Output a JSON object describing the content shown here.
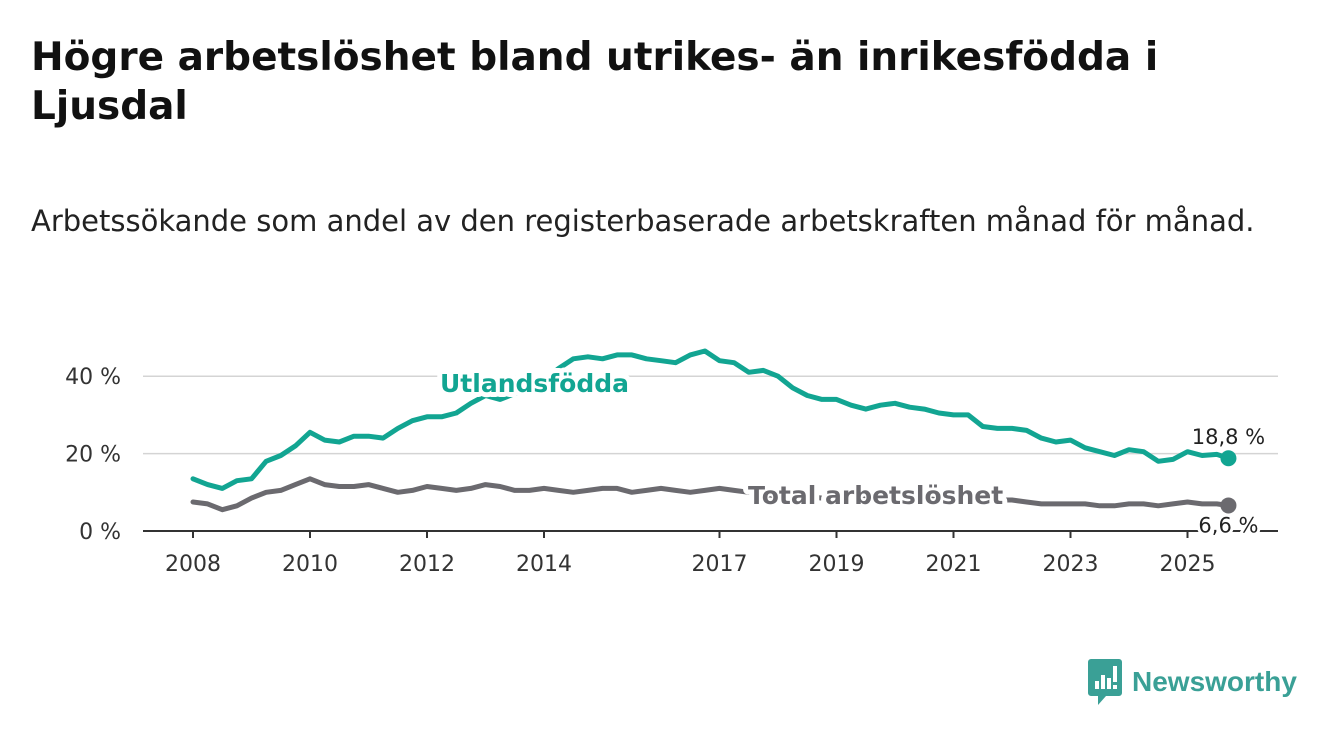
{
  "title": "Högre arbetslöshet bland utrikes- än inrikesfödda i Ljusdal",
  "subtitle": "Arbetssökande som andel av den registerbaserade arbetskraften månad för månad.",
  "brand": {
    "name": "Newsworthy",
    "color": "#3aa096",
    "icon": "bar-chart-logo-icon"
  },
  "chart_data": {
    "type": "line",
    "title": "Högre arbetslöshet bland utrikes- än inrikesfödda i Ljusdal",
    "xlabel": "",
    "ylabel": "",
    "xlim": [
      2007.6,
      2026.5
    ],
    "ylim": [
      0,
      50
    ],
    "grid": true,
    "y_ticks": [
      {
        "value": 0,
        "label": "0 %"
      },
      {
        "value": 20,
        "label": "20 %"
      },
      {
        "value": 40,
        "label": "40 %"
      }
    ],
    "x_ticks": [
      {
        "value": 2008,
        "label": "2008"
      },
      {
        "value": 2010,
        "label": "2010"
      },
      {
        "value": 2012,
        "label": "2012"
      },
      {
        "value": 2014,
        "label": "2014"
      },
      {
        "value": 2017,
        "label": "2017"
      },
      {
        "value": 2019,
        "label": "2019"
      },
      {
        "value": 2021,
        "label": "2021"
      },
      {
        "value": 2023,
        "label": "2023"
      },
      {
        "value": 2025,
        "label": "2025"
      }
    ],
    "series": [
      {
        "name": "Utlandsfödda",
        "color": "#12a592",
        "end_label": "18,8 %",
        "x": [
          2008.0,
          2008.25,
          2008.5,
          2008.75,
          2009.0,
          2009.25,
          2009.5,
          2009.75,
          2010.0,
          2010.25,
          2010.5,
          2010.75,
          2011.0,
          2011.25,
          2011.5,
          2011.75,
          2012.0,
          2012.25,
          2012.5,
          2012.75,
          2013.0,
          2013.25,
          2013.5,
          2013.75,
          2014.0,
          2014.25,
          2014.5,
          2014.75,
          2015.0,
          2015.25,
          2015.5,
          2015.75,
          2016.0,
          2016.25,
          2016.5,
          2016.75,
          2017.0,
          2017.25,
          2017.5,
          2017.75,
          2018.0,
          2018.25,
          2018.5,
          2018.75,
          2019.0,
          2019.25,
          2019.5,
          2019.75,
          2020.0,
          2020.25,
          2020.5,
          2020.75,
          2021.0,
          2021.25,
          2021.5,
          2021.75,
          2022.0,
          2022.25,
          2022.5,
          2022.75,
          2023.0,
          2023.25,
          2023.5,
          2023.75,
          2024.0,
          2024.25,
          2024.5,
          2024.75,
          2025.0,
          2025.25,
          2025.5,
          2025.7
        ],
        "values": [
          13.5,
          12.0,
          11.0,
          13.0,
          13.5,
          18.0,
          19.5,
          22.0,
          25.5,
          23.5,
          23.0,
          24.5,
          24.5,
          24.0,
          26.5,
          28.5,
          29.5,
          29.5,
          30.5,
          33.0,
          35.0,
          34.0,
          35.5,
          36.0,
          39.0,
          42.0,
          44.5,
          45.0,
          44.5,
          45.5,
          45.5,
          44.5,
          44.0,
          43.5,
          45.5,
          46.5,
          44.0,
          43.5,
          41.0,
          41.5,
          40.0,
          37.0,
          35.0,
          34.0,
          34.0,
          32.5,
          31.5,
          32.5,
          33.0,
          32.0,
          31.5,
          30.5,
          30.0,
          30.0,
          27.0,
          26.5,
          26.5,
          26.0,
          24.0,
          23.0,
          23.5,
          21.5,
          20.5,
          19.5,
          21.0,
          20.5,
          18.0,
          18.5,
          20.5,
          19.5,
          19.8,
          18.8
        ]
      },
      {
        "name": "Total arbetslöshet",
        "color": "#6b6a6f",
        "end_label": "6,6 %",
        "x": [
          2008.0,
          2008.25,
          2008.5,
          2008.75,
          2009.0,
          2009.25,
          2009.5,
          2009.75,
          2010.0,
          2010.25,
          2010.5,
          2010.75,
          2011.0,
          2011.25,
          2011.5,
          2011.75,
          2012.0,
          2012.25,
          2012.5,
          2012.75,
          2013.0,
          2013.25,
          2013.5,
          2013.75,
          2014.0,
          2014.25,
          2014.5,
          2014.75,
          2015.0,
          2015.25,
          2015.5,
          2015.75,
          2016.0,
          2016.25,
          2016.5,
          2016.75,
          2017.0,
          2017.25,
          2017.5,
          2017.75,
          2018.0,
          2018.25,
          2018.5,
          2018.75,
          2019.0,
          2019.25,
          2019.5,
          2019.75,
          2020.0,
          2020.25,
          2020.5,
          2020.75,
          2021.0,
          2021.25,
          2021.5,
          2021.75,
          2022.0,
          2022.25,
          2022.5,
          2022.75,
          2023.0,
          2023.25,
          2023.5,
          2023.75,
          2024.0,
          2024.25,
          2024.5,
          2024.75,
          2025.0,
          2025.25,
          2025.5,
          2025.7
        ],
        "values": [
          7.5,
          7.0,
          5.5,
          6.5,
          8.5,
          10.0,
          10.5,
          12.0,
          13.5,
          12.0,
          11.5,
          11.5,
          12.0,
          11.0,
          10.0,
          10.5,
          11.5,
          11.0,
          10.5,
          11.0,
          12.0,
          11.5,
          10.5,
          10.5,
          11.0,
          10.5,
          10.0,
          10.5,
          11.0,
          11.0,
          10.0,
          10.5,
          11.0,
          10.5,
          10.0,
          10.5,
          11.0,
          10.5,
          10.0,
          9.5,
          9.0,
          9.0,
          9.0,
          8.5,
          8.5,
          8.5,
          8.5,
          8.5,
          9.0,
          8.5,
          8.5,
          8.0,
          8.0,
          8.0,
          8.0,
          8.0,
          8.0,
          7.5,
          7.0,
          7.0,
          7.0,
          7.0,
          6.5,
          6.5,
          7.0,
          7.0,
          6.5,
          7.0,
          7.5,
          7.0,
          7.0,
          6.6
        ]
      }
    ]
  }
}
